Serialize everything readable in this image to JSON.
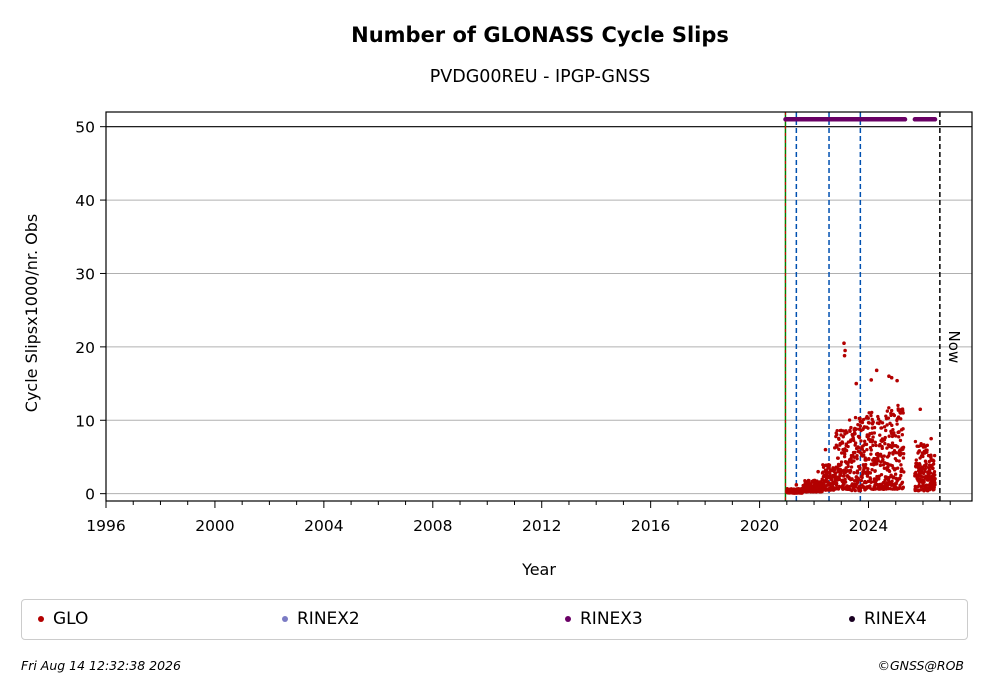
{
  "chart_data": {
    "type": "scatter",
    "title": "Number of GLONASS Cycle Slips",
    "subtitle": "PVDG00REU - IPGP-GNSS",
    "xlabel": "Year",
    "ylabel": "Cycle Slipsx1000/nr. Obs",
    "xlim": [
      1996.0,
      2027.8
    ],
    "ylim": [
      -1,
      52
    ],
    "x_ticks": [
      1996,
      2000,
      2004,
      2008,
      2012,
      2016,
      2020,
      2024
    ],
    "x_tick_labels": [
      "1996",
      "2000",
      "2004",
      "2008",
      "2012",
      "2016",
      "2020",
      "2024"
    ],
    "y_ticks": [
      0,
      10,
      20,
      30,
      40,
      50
    ],
    "y_tick_labels": [
      "0",
      "10",
      "20",
      "30",
      "40",
      "50"
    ],
    "grid": "horizontal",
    "horizontal_line": 50,
    "now_label": "Now",
    "now_x": 2026.62,
    "vlines": [
      {
        "x": 2020.95,
        "color": "#008000",
        "style": "solid"
      },
      {
        "x": 2021.35,
        "color": "#0050b0",
        "style": "dashed"
      },
      {
        "x": 2022.55,
        "color": "#0050b0",
        "style": "dashed"
      },
      {
        "x": 2023.7,
        "color": "#0050b0",
        "style": "dashed"
      }
    ],
    "series": [
      {
        "name": "GLO",
        "color": "#b30000",
        "segments": [
          {
            "x0": 2021.0,
            "x1": 2021.6,
            "base": 0.2,
            "spread": 0.6,
            "spikes": [
              [
                2021.35,
                1.2
              ]
            ]
          },
          {
            "x0": 2021.6,
            "x1": 2022.3,
            "base": 0.6,
            "spread": 1.6,
            "spikes": [
              [
                2022.15,
                3.0
              ]
            ]
          },
          {
            "x0": 2022.3,
            "x1": 2022.75,
            "base": 1.2,
            "spread": 3.5,
            "spikes": [
              [
                2022.42,
                6.0
              ]
            ]
          },
          {
            "x0": 2022.75,
            "x1": 2023.3,
            "base": 1.5,
            "spread": 8.5,
            "spikes": [
              [
                2023.1,
                20.5
              ],
              [
                2023.12,
                18.8
              ],
              [
                2023.14,
                19.5
              ]
            ]
          },
          {
            "x0": 2023.3,
            "x1": 2023.9,
            "base": 1.0,
            "spread": 10.0,
            "spikes": [
              [
                2023.55,
                15.0
              ]
            ]
          },
          {
            "x0": 2023.9,
            "x1": 2024.6,
            "base": 1.5,
            "spread": 11.0,
            "spikes": [
              [
                2024.1,
                15.5
              ],
              [
                2024.3,
                16.8
              ]
            ]
          },
          {
            "x0": 2024.6,
            "x1": 2025.3,
            "base": 1.5,
            "spread": 11.5,
            "spikes": [
              [
                2024.75,
                16.0
              ],
              [
                2024.85,
                15.8
              ],
              [
                2025.05,
                15.4
              ]
            ]
          },
          {
            "x0": 2025.7,
            "x1": 2026.2,
            "base": 1.0,
            "spread": 7.0,
            "spikes": [
              [
                2025.9,
                11.5
              ]
            ]
          },
          {
            "x0": 2026.2,
            "x1": 2026.45,
            "base": 1.2,
            "spread": 5.0,
            "spikes": [
              [
                2026.3,
                7.5
              ]
            ]
          }
        ]
      },
      {
        "name": "RINEX2",
        "color": "#7b7bc4",
        "segments": []
      },
      {
        "name": "RINEX3",
        "color": "#6a0066",
        "y": 51,
        "ranges": [
          [
            2020.95,
            2025.35
          ],
          [
            2025.7,
            2026.45
          ]
        ]
      },
      {
        "name": "RINEX4",
        "color": "#1a0022",
        "segments": []
      }
    ]
  },
  "legend": {
    "items": [
      {
        "label": "GLO",
        "color": "#b30000"
      },
      {
        "label": "RINEX2",
        "color": "#7b7bc4"
      },
      {
        "label": "RINEX3",
        "color": "#6a0066"
      },
      {
        "label": "RINEX4",
        "color": "#1a0022"
      }
    ]
  },
  "footer": {
    "timestamp": "Fri Aug 14 12:32:38 2026",
    "credit": "©GNSS@ROB"
  }
}
